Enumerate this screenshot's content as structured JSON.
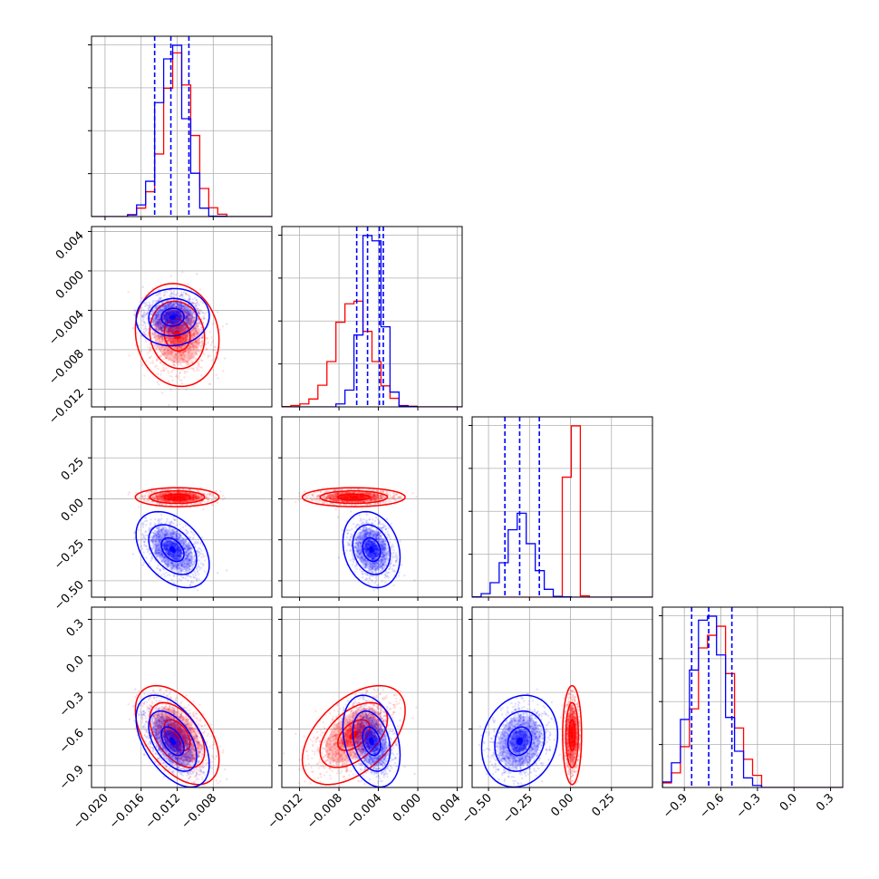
{
  "colors": {
    "series_a": "#ff0000",
    "series_b": "#0000ff",
    "grid": "#b0b0b0",
    "frame": "#000000"
  },
  "chart_data": {
    "type": "corner",
    "dimensions": 4,
    "series": [
      {
        "color": "red",
        "means": [
          -0.012,
          -0.0065,
          0.01,
          -0.65
        ],
        "sds": [
          0.0016,
          0.0018,
          0.02,
          0.14
        ],
        "corr": [
          [
            1,
            -0.1,
            0.0,
            -0.5
          ],
          [
            -0.1,
            1,
            0.0,
            0.5
          ],
          [
            0.0,
            0.0,
            1,
            0.0
          ],
          [
            -0.5,
            0.5,
            0.0,
            1
          ]
        ]
      },
      {
        "color": "blue",
        "means": [
          -0.0125,
          -0.0047,
          -0.31,
          -0.7
        ],
        "sds": [
          0.0014,
          0.001,
          0.08,
          0.13
        ],
        "corr": [
          [
            1,
            0.05,
            -0.4,
            -0.5
          ],
          [
            0.05,
            1,
            -0.2,
            -0.3
          ],
          [
            -0.4,
            -0.2,
            1,
            0.15
          ],
          [
            -0.5,
            -0.3,
            0.15,
            1
          ]
        ]
      }
    ],
    "quantile_lines": [
      {
        "series": "blue",
        "values": [
          -0.0145,
          -0.0127,
          -0.0107
        ]
      },
      {
        "series": "blue",
        "values": [
          -0.0062,
          -0.0051,
          -0.0039,
          -0.0035
        ]
      },
      {
        "series": "blue",
        "values": [
          -0.4,
          -0.31,
          -0.19
        ]
      },
      {
        "series": "blue",
        "values": [
          -0.84,
          -0.7,
          -0.51
        ]
      }
    ],
    "axis_ranges": [
      [
        -0.0215,
        -0.0015
      ],
      [
        -0.0138,
        0.0045
      ],
      [
        -0.6,
        0.5
      ],
      [
        -1.08,
        0.4
      ]
    ],
    "ticks": [
      {
        "values": [
          -0.02,
          -0.016,
          -0.012,
          -0.008
        ],
        "labels": [
          "−0.020",
          "−0.016",
          "−0.012",
          "−0.008"
        ]
      },
      {
        "values": [
          -0.012,
          -0.008,
          -0.004,
          0.0,
          0.004
        ],
        "labels": [
          "−0.012",
          "−0.008",
          "−0.004",
          "0.000",
          "0.004"
        ]
      },
      {
        "values": [
          -0.5,
          -0.25,
          0.0,
          0.25
        ],
        "labels": [
          "−0.50",
          "−0.25",
          "0.00",
          "0.25"
        ]
      },
      {
        "values": [
          -0.9,
          -0.6,
          -0.3,
          0.0,
          0.3
        ],
        "labels": [
          "−0.9",
          "−0.6",
          "−0.3",
          "0.0",
          "0.3"
        ]
      }
    ],
    "histogram_bins": 20,
    "grid": true,
    "contour_levels": [
      "39%",
      "86%",
      "99%"
    ]
  }
}
